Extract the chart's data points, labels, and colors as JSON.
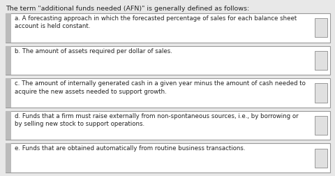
{
  "title": "The term \"additional funds needed (AFN)\" is generally defined as follows:",
  "title_fontsize": 6.8,
  "bg_color": "#e8e8e8",
  "box_bg": "#ffffff",
  "box_border": "#999999",
  "left_bar_color": "#bbbbbb",
  "right_box_color": "#e0e0e0",
  "text_color": "#222222",
  "options": [
    "a. A forecasting approach in which the forecasted percentage of sales for each balance sheet\naccount is held constant.",
    "b. The amount of assets required per dollar of sales.",
    "c. The amount of internally generated cash in a given year minus the amount of cash needed to\nacquire the new assets needed to support growth.",
    "d. Funds that a firm must raise externally from non-spontaneous sources, i.e., by borrowing or\nby selling new stock to support operations.",
    "e. Funds that are obtained automatically from routine business transactions."
  ],
  "line_counts": [
    2,
    1,
    2,
    2,
    1
  ],
  "font_size": 6.2,
  "fig_width": 4.81,
  "fig_height": 2.52,
  "dpi": 100
}
